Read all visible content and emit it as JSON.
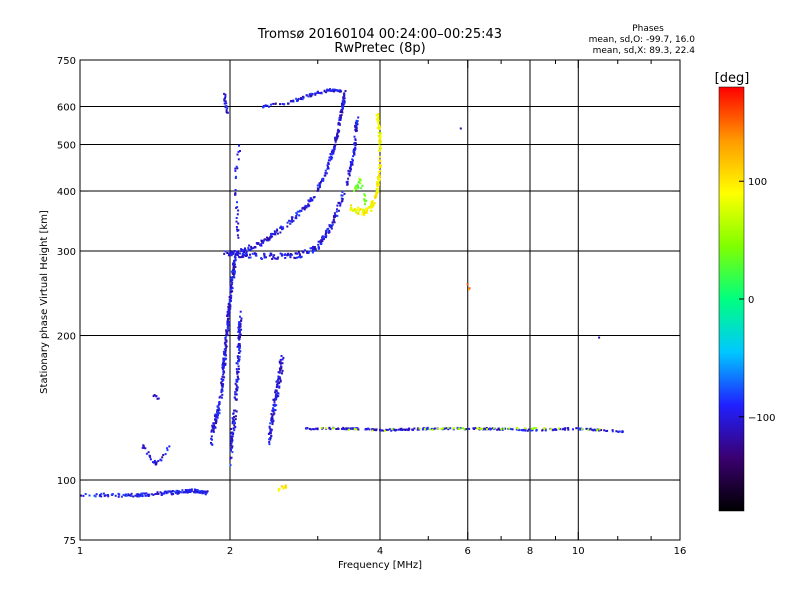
{
  "header": {
    "title": "Tromsø 20160104 00:24:00–00:25:43",
    "subtitle": "RwPretec (8p)"
  },
  "phases": {
    "title": "Phases",
    "line_o": "mean, sd,O: -99.7, 16.0",
    "line_x": "mean, sd,X:  89.3, 22.4"
  },
  "colorbar": {
    "unit_label": "[deg]",
    "ticks": [
      {
        "value": 100,
        "label": "100"
      },
      {
        "value": 0,
        "label": "0"
      },
      {
        "value": -100,
        "label": "−100"
      }
    ],
    "range": [
      -180,
      180
    ],
    "colors": [
      "#000000",
      "#3a0070",
      "#2020ff",
      "#00c8ff",
      "#00ff80",
      "#80ff00",
      "#ffff00",
      "#ff9900",
      "#ff0000"
    ]
  },
  "chart_data": {
    "type": "scatter",
    "xlabel": "Frequency [MHz]",
    "ylabel": "Stationary phase Virtual Height [km]",
    "x_scale": "log",
    "y_scale": "log",
    "xlim": [
      1,
      16
    ],
    "ylim": [
      75,
      750
    ],
    "x_ticks": [
      {
        "value": 1,
        "label": "1"
      },
      {
        "value": 2,
        "label": "2"
      },
      {
        "value": 4,
        "label": "4"
      },
      {
        "value": 6,
        "label": "6"
      },
      {
        "value": 8,
        "label": "8"
      },
      {
        "value": 10,
        "label": "10"
      },
      {
        "value": 16,
        "label": "16"
      }
    ],
    "x_minor_ticks": [
      3,
      5,
      7,
      9,
      12,
      14
    ],
    "y_ticks": [
      {
        "value": 75,
        "label": "75"
      },
      {
        "value": 100,
        "label": "100"
      },
      {
        "value": 200,
        "label": "200"
      },
      {
        "value": 300,
        "label": "300"
      },
      {
        "value": 400,
        "label": "400"
      },
      {
        "value": 500,
        "label": "500"
      },
      {
        "value": 600,
        "label": "600"
      },
      {
        "value": 750,
        "label": "750"
      }
    ],
    "grid_x": [
      2,
      4,
      6,
      8,
      10
    ],
    "grid_y": [
      100,
      200,
      300,
      400,
      500,
      600
    ],
    "traces": [
      {
        "pts": [
          [
            1.0,
            93
          ],
          [
            1.3,
            93
          ],
          [
            1.5,
            94
          ],
          [
            1.7,
            95
          ],
          [
            1.8,
            94
          ]
        ],
        "phase": -95,
        "spread_y": 0.008,
        "n": 170
      },
      {
        "pts": [
          [
            1.34,
            118
          ],
          [
            1.38,
            112
          ],
          [
            1.42,
            108
          ],
          [
            1.47,
            112
          ],
          [
            1.52,
            120
          ]
        ],
        "phase": -100,
        "spread_y": 0.01,
        "n": 30
      },
      {
        "pts": [
          [
            1.4,
            150
          ],
          [
            1.44,
            148
          ]
        ],
        "phase": -100,
        "spread_y": 0.008,
        "n": 6
      },
      {
        "pts": [
          [
            1.83,
            120
          ],
          [
            1.92,
            150
          ],
          [
            1.96,
            190
          ],
          [
            2.0,
            240
          ],
          [
            2.05,
            290
          ]
        ],
        "phase": -100,
        "spread_y": 0.03,
        "n": 270
      },
      {
        "pts": [
          [
            2.0,
            112
          ],
          [
            2.05,
            140
          ],
          [
            2.08,
            180
          ],
          [
            2.1,
            220
          ]
        ],
        "phase": -100,
        "spread_y": 0.05,
        "n": 160
      },
      {
        "pts": [
          [
            1.95,
            298
          ],
          [
            2.3,
            292
          ],
          [
            2.7,
            292
          ],
          [
            3.0,
            305
          ],
          [
            3.2,
            340
          ],
          [
            3.4,
            400
          ],
          [
            3.55,
            480
          ],
          [
            3.6,
            580
          ]
        ],
        "phase": -100,
        "spread_y": 0.015,
        "n": 260
      },
      {
        "pts": [
          [
            2.0,
            295
          ],
          [
            2.3,
            310
          ],
          [
            2.6,
            340
          ],
          [
            2.9,
            380
          ],
          [
            3.1,
            430
          ],
          [
            3.25,
            500
          ],
          [
            3.35,
            580
          ],
          [
            3.4,
            640
          ]
        ],
        "phase": -100,
        "spread_y": 0.012,
        "n": 260
      },
      {
        "pts": [
          [
            2.07,
            320
          ],
          [
            2.07,
            360
          ],
          [
            2.05,
            400
          ],
          [
            2.06,
            450
          ],
          [
            2.1,
            500
          ]
        ],
        "phase": -100,
        "spread_y": 0.012,
        "n": 30
      },
      {
        "pts": [
          [
            1.95,
            640
          ],
          [
            1.96,
            600
          ],
          [
            1.98,
            580
          ]
        ],
        "phase": -100,
        "spread_y": 0.01,
        "n": 18
      },
      {
        "pts": [
          [
            2.3,
            600
          ],
          [
            2.6,
            610
          ],
          [
            2.8,
            625
          ],
          [
            3.0,
            640
          ],
          [
            3.2,
            650
          ],
          [
            3.35,
            645
          ]
        ],
        "phase": -100,
        "spread_y": 0.006,
        "n": 90
      },
      {
        "pts": [
          [
            3.5,
            370
          ],
          [
            3.7,
            360
          ],
          [
            3.85,
            370
          ],
          [
            3.95,
            400
          ],
          [
            4.0,
            450
          ],
          [
            4.0,
            520
          ],
          [
            3.95,
            580
          ]
        ],
        "phase": 90,
        "spread_y": 0.015,
        "n": 170
      },
      {
        "pts": [
          [
            3.55,
            400
          ],
          [
            3.65,
            420
          ],
          [
            3.75,
            380
          ]
        ],
        "phase": 40,
        "spread_y": 0.015,
        "n": 25
      },
      {
        "pts": [
          [
            2.4,
            120
          ],
          [
            2.45,
            140
          ],
          [
            2.5,
            160
          ],
          [
            2.55,
            180
          ]
        ],
        "phase": -100,
        "spread_y": 0.04,
        "n": 110
      },
      {
        "pts": [
          [
            2.85,
            128
          ],
          [
            3.5,
            128
          ],
          [
            4.1,
            127
          ],
          [
            5.0,
            128
          ],
          [
            6.5,
            128
          ],
          [
            8.0,
            127
          ],
          [
            10.0,
            128
          ],
          [
            12.5,
            126
          ]
        ],
        "phase": -100,
        "spread_y": 0.004,
        "n": 230
      },
      {
        "pts": [
          [
            3.0,
            128
          ],
          [
            4.0,
            127
          ],
          [
            5.5,
            128
          ],
          [
            7.0,
            128
          ],
          [
            9.0,
            128
          ],
          [
            11.0,
            127
          ]
        ],
        "phase": 60,
        "spread_y": 0.004,
        "n": 50
      },
      {
        "pts": [
          [
            2.5,
            95
          ],
          [
            2.6,
            97
          ]
        ],
        "phase": 100,
        "spread_y": 0.01,
        "n": 12
      },
      {
        "pts": [
          [
            6.0,
            255
          ],
          [
            6.05,
            248
          ]
        ],
        "phase": 150,
        "spread_y": 0.01,
        "n": 3
      },
      {
        "pts": [
          [
            5.8,
            540
          ]
        ],
        "phase": -120,
        "spread_y": 0.0,
        "n": 1
      },
      {
        "pts": [
          [
            11.0,
            198
          ]
        ],
        "phase": -120,
        "spread_y": 0.0,
        "n": 1
      }
    ]
  }
}
